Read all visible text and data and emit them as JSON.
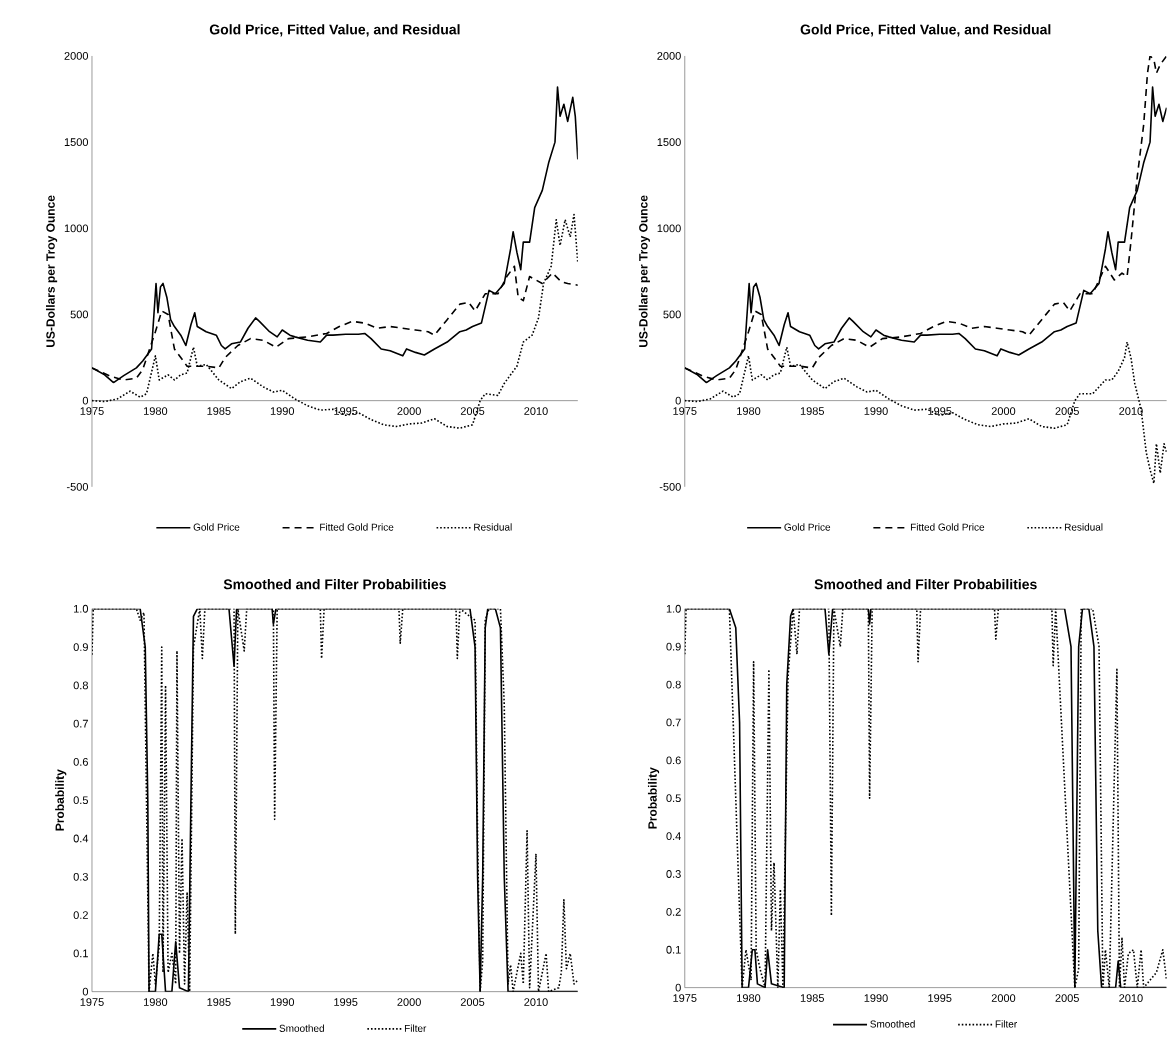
{
  "chart_data": [
    {
      "type": "line",
      "title": "Gold Price, Fitted Value, and Residual",
      "ylabel": "US-Dollars per Troy Ounce",
      "xlim": [
        1975,
        2013.3
      ],
      "xticks": [
        1975,
        1980,
        1985,
        1990,
        1995,
        2000,
        2005,
        2010
      ],
      "ylim": [
        -500,
        2000
      ],
      "yticks": [
        -500,
        0,
        500,
        1000,
        1500,
        2000
      ],
      "legend": "bottom",
      "series": [
        {
          "name": "Gold Price",
          "color": "#000000",
          "line_style": "solid",
          "x": [
            1975,
            1976,
            1976.7,
            1977.5,
            1978.5,
            1979,
            1979.7,
            1980.05,
            1980.2,
            1980.4,
            1980.6,
            1980.9,
            1981.2,
            1981.5,
            1982,
            1982.4,
            1982.8,
            1983.1,
            1983.3,
            1984,
            1984.8,
            1985.2,
            1985.5,
            1986,
            1986.7,
            1987.3,
            1987.9,
            1988.2,
            1989,
            1989.6,
            1990,
            1990.6,
            1991,
            1992,
            1993,
            1993.5,
            1994,
            1995,
            1996,
            1996.5,
            1997,
            1997.8,
            1998.5,
            1999.5,
            1999.8,
            2000.5,
            2001.2,
            2002,
            2002.5,
            2003,
            2004,
            2004.5,
            2005,
            2005.7,
            2006.3,
            2006.8,
            2007.5,
            2008,
            2008.2,
            2008.5,
            2008.8,
            2009,
            2009.5,
            2009.9,
            2010.5,
            2011,
            2011.5,
            2011.7,
            2011.9,
            2012.2,
            2012.5,
            2012.9,
            2013.1,
            2013.3
          ],
          "values": [
            190,
            150,
            105,
            145,
            190,
            230,
            300,
            680,
            510,
            660,
            680,
            600,
            470,
            430,
            380,
            320,
            440,
            510,
            430,
            400,
            380,
            320,
            300,
            330,
            340,
            420,
            480,
            460,
            400,
            370,
            410,
            380,
            370,
            350,
            340,
            380,
            380,
            385,
            385,
            390,
            360,
            300,
            290,
            260,
            300,
            280,
            265,
            300,
            320,
            340,
            400,
            410,
            430,
            450,
            640,
            620,
            680,
            880,
            980,
            860,
            760,
            920,
            920,
            1120,
            1220,
            1380,
            1500,
            1820,
            1650,
            1720,
            1620,
            1760,
            1650,
            1400
          ]
        },
        {
          "name": "Fitted Gold Price",
          "color": "#000000",
          "line_style": "dashed",
          "x": [
            1975,
            1976.5,
            1977.5,
            1978.5,
            1979,
            1980,
            1980.5,
            1981,
            1981.5,
            1982.5,
            1983,
            1984,
            1985,
            1985.5,
            1986.5,
            1987.5,
            1988.5,
            1989.5,
            1990.5,
            1992,
            1993.5,
            1994.5,
            1995.5,
            1996.5,
            1997.5,
            1998.5,
            1999.5,
            2000.5,
            2001.5,
            2002,
            2003,
            2004,
            2004.7,
            2005.2,
            2006,
            2007,
            2007.7,
            2008.3,
            2008.6,
            2009,
            2009.5,
            2010,
            2010.5,
            2011.3,
            2012,
            2012.5,
            2013.3
          ],
          "values": [
            190,
            140,
            120,
            130,
            180,
            400,
            520,
            500,
            300,
            200,
            200,
            200,
            190,
            250,
            320,
            360,
            350,
            310,
            360,
            370,
            390,
            430,
            460,
            450,
            420,
            430,
            420,
            410,
            400,
            380,
            470,
            560,
            570,
            520,
            620,
            620,
            720,
            780,
            600,
            580,
            720,
            700,
            680,
            740,
            690,
            680,
            670
          ]
        },
        {
          "name": "Residual",
          "color": "#000000",
          "line_style": "dotted",
          "x": [
            1975,
            1976,
            1977,
            1978,
            1978.8,
            1979.3,
            1980,
            1980.3,
            1981,
            1981.5,
            1982,
            1982.5,
            1983,
            1983.3,
            1984,
            1985,
            1986,
            1986.7,
            1987.5,
            1988.5,
            1989.3,
            1990,
            1991,
            1992,
            1993,
            1994,
            1995,
            1996,
            1997,
            1998,
            1999,
            2000,
            2001,
            2002,
            2003,
            2004,
            2005,
            2005.6,
            2006,
            2007,
            2007.5,
            2008,
            2008.5,
            2009,
            2009.7,
            2010.2,
            2010.6,
            2011.2,
            2011.6,
            2011.9,
            2012.3,
            2012.7,
            2013,
            2013.3
          ],
          "values": [
            0,
            -5,
            10,
            55,
            20,
            40,
            260,
            120,
            150,
            120,
            150,
            160,
            310,
            200,
            210,
            120,
            70,
            110,
            130,
            80,
            50,
            60,
            10,
            -30,
            -55,
            -50,
            -85,
            -70,
            -110,
            -140,
            -150,
            -135,
            -130,
            -105,
            -150,
            -160,
            -140,
            0,
            40,
            30,
            100,
            150,
            200,
            340,
            380,
            480,
            680,
            780,
            1050,
            900,
            1050,
            950,
            1080,
            800
          ]
        }
      ]
    },
    {
      "type": "line",
      "title": "Gold Price, Fitted Value, and Residual",
      "ylabel": "US-Dollars per Troy Ounce",
      "xlim": [
        1975,
        2012.8
      ],
      "xticks": [
        1975,
        1980,
        1985,
        1990,
        1995,
        2000,
        2005,
        2010
      ],
      "ylim": [
        -500,
        2000
      ],
      "yticks": [
        -500,
        0,
        500,
        1000,
        1500,
        2000
      ],
      "legend": "bottom",
      "series": [
        {
          "name": "Gold Price",
          "color": "#000000",
          "line_style": "solid",
          "x": [
            1975,
            1976,
            1976.7,
            1977.5,
            1978.5,
            1979,
            1979.7,
            1980.05,
            1980.2,
            1980.4,
            1980.6,
            1980.9,
            1981.2,
            1981.5,
            1982,
            1982.4,
            1982.8,
            1983.1,
            1983.3,
            1984,
            1984.8,
            1985.2,
            1985.5,
            1986,
            1986.7,
            1987.3,
            1987.9,
            1988.2,
            1989,
            1989.6,
            1990,
            1990.6,
            1991,
            1992,
            1993,
            1993.5,
            1994,
            1995,
            1996,
            1996.5,
            1997,
            1997.8,
            1998.5,
            1999.5,
            1999.8,
            2000.5,
            2001.2,
            2002,
            2002.5,
            2003,
            2004,
            2004.5,
            2005,
            2005.7,
            2006.3,
            2006.8,
            2007.5,
            2008,
            2008.2,
            2008.5,
            2008.8,
            2009,
            2009.5,
            2009.9,
            2010.5,
            2011,
            2011.5,
            2011.7,
            2011.9,
            2012.2,
            2012.5,
            2012.8
          ],
          "values": [
            190,
            150,
            105,
            145,
            190,
            230,
            300,
            680,
            510,
            660,
            680,
            600,
            470,
            430,
            380,
            320,
            440,
            510,
            430,
            400,
            380,
            320,
            300,
            330,
            340,
            420,
            480,
            460,
            400,
            370,
            410,
            380,
            370,
            350,
            340,
            380,
            380,
            385,
            385,
            390,
            360,
            300,
            290,
            260,
            300,
            280,
            265,
            300,
            320,
            340,
            400,
            410,
            430,
            450,
            640,
            620,
            680,
            880,
            980,
            860,
            760,
            920,
            920,
            1120,
            1220,
            1380,
            1500,
            1820,
            1650,
            1720,
            1620,
            1700
          ]
        },
        {
          "name": "Fitted Gold Price",
          "color": "#000000",
          "line_style": "dashed",
          "x": [
            1975,
            1976.5,
            1977.5,
            1978.5,
            1979,
            1980,
            1980.5,
            1981,
            1981.5,
            1982.5,
            1983,
            1984,
            1985,
            1985.5,
            1986.5,
            1987.5,
            1988.5,
            1989.5,
            1990.5,
            1992,
            1993.5,
            1994.5,
            1995.5,
            1996.5,
            1997.5,
            1998.5,
            1999.5,
            2000.5,
            2001.5,
            2002,
            2003,
            2004,
            2004.7,
            2005.2,
            2006,
            2007,
            2008,
            2008.7,
            2009.3,
            2009.7,
            2010,
            2010.5,
            2011,
            2011.3,
            2011.5,
            2011.8,
            2012,
            2012.3,
            2012.8
          ],
          "values": [
            190,
            140,
            120,
            130,
            180,
            400,
            520,
            500,
            300,
            200,
            200,
            200,
            190,
            250,
            320,
            360,
            350,
            310,
            360,
            370,
            390,
            430,
            460,
            450,
            420,
            430,
            420,
            410,
            400,
            380,
            470,
            560,
            570,
            520,
            620,
            620,
            780,
            700,
            740,
            720,
            920,
            1300,
            1600,
            1900,
            2000,
            1980,
            1900,
            1950,
            2000
          ]
        },
        {
          "name": "Residual",
          "color": "#000000",
          "line_style": "dotted",
          "x": [
            1975,
            1976,
            1977,
            1978,
            1978.8,
            1979.3,
            1980,
            1980.3,
            1981,
            1981.5,
            1982,
            1982.5,
            1983,
            1983.3,
            1984,
            1985,
            1986,
            1986.7,
            1987.5,
            1988.5,
            1989.3,
            1990,
            1991,
            1992,
            1993,
            1994,
            1995,
            1996,
            1997,
            1998,
            1999,
            2000,
            2001,
            2002,
            2003,
            2004,
            2005,
            2005.6,
            2006,
            2007,
            2008,
            2008.5,
            2009,
            2009.5,
            2009.7,
            2010,
            2010.3,
            2010.8,
            2011.2,
            2011.5,
            2011.8,
            2012,
            2012.3,
            2012.6,
            2012.8
          ],
          "values": [
            0,
            -5,
            10,
            55,
            20,
            40,
            260,
            120,
            150,
            120,
            150,
            160,
            310,
            200,
            210,
            120,
            70,
            110,
            130,
            80,
            50,
            60,
            10,
            -30,
            -55,
            -50,
            -85,
            -70,
            -110,
            -140,
            -150,
            -135,
            -130,
            -105,
            -150,
            -160,
            -140,
            0,
            40,
            40,
            120,
            120,
            170,
            250,
            340,
            250,
            100,
            -50,
            -300,
            -400,
            -480,
            -250,
            -420,
            -250,
            -300
          ]
        }
      ]
    },
    {
      "type": "line",
      "title": "Smoothed and Filter Probabilities",
      "ylabel": "Probability",
      "xlim": [
        1975,
        2013.3
      ],
      "xticks": [
        1975,
        1980,
        1985,
        1990,
        1995,
        2000,
        2005,
        2010
      ],
      "ylim": [
        0,
        1
      ],
      "yticks": [
        0,
        0.1,
        0.2,
        0.3,
        0.4,
        0.5,
        0.6,
        0.7,
        0.8,
        0.9,
        {
          "value": 1,
          "label": "1.0"
        }
      ],
      "legend": "bottom",
      "series": [
        {
          "name": "Smoothed",
          "color": "#000000",
          "line_style": "solid",
          "x": [
            1975,
            1978.8,
            1979.2,
            1979.4,
            1979.5,
            1980,
            1980.3,
            1980.5,
            1980.8,
            1981.3,
            1981.6,
            1981.9,
            1982.6,
            1982.8,
            1983,
            1983.3,
            1985.8,
            1986.2,
            1986.4,
            1989.2,
            1989.3,
            1989.5,
            2004.8,
            2005.2,
            2005.4,
            2005.6,
            2005.8,
            2006,
            2006.2,
            2006.8,
            2007.2,
            2007.5,
            2007.8,
            2013.3
          ],
          "values": [
            1,
            1,
            0.9,
            0.5,
            0,
            0,
            0.15,
            0.15,
            0,
            0,
            0.13,
            0.01,
            0,
            0.5,
            0.98,
            1,
            1,
            0.85,
            1,
            1,
            0.96,
            1,
            1,
            0.9,
            0.3,
            0,
            0.3,
            0.95,
            1,
            1,
            0.95,
            0.3,
            0,
            0
          ]
        },
        {
          "name": "Filter",
          "color": "#000000",
          "line_style": "dotted",
          "x": [
            1975,
            1975.1,
            1978.5,
            1978.8,
            1979.1,
            1979.5,
            1979.8,
            1980,
            1980.3,
            1980.5,
            1980.6,
            1980.8,
            1981,
            1981.3,
            1981.6,
            1981.7,
            1981.9,
            1982.1,
            1982.3,
            1982.5,
            1982.7,
            1983,
            1983.5,
            1983.7,
            1983.9,
            1986.2,
            1986.3,
            1986.5,
            1987,
            1987.2,
            1989.3,
            1989.4,
            1989.6,
            1993,
            1993.1,
            1993.3,
            1999.2,
            1999.3,
            1999.5,
            2003.7,
            2003.8,
            2004,
            2005.2,
            2005.4,
            2005.6,
            2005.8,
            2006,
            2006.3,
            2007.2,
            2007.5,
            2007.8,
            2008,
            2008.2,
            2008.8,
            2009,
            2009.3,
            2009.5,
            2010,
            2010.2,
            2010.8,
            2011,
            2011.8,
            2012,
            2012.2,
            2012.4,
            2012.7,
            2013,
            2013.3
          ],
          "values": [
            0.88,
            1,
            1,
            0.97,
            0.99,
            0,
            0.1,
            0.02,
            0.12,
            0.9,
            0.05,
            0.8,
            0.05,
            0.1,
            0.02,
            0.89,
            0.1,
            0.4,
            0.02,
            0.26,
            0,
            0.9,
            1,
            0.87,
            1,
            1,
            0.15,
            1,
            0.89,
            1,
            1,
            0.45,
            1,
            1,
            0.87,
            1,
            1,
            0.91,
            1,
            1,
            0.87,
            1,
            0.97,
            0.4,
            0,
            0.08,
            0.97,
            1,
            1,
            0.75,
            0.02,
            0.07,
            0,
            0.1,
            0.02,
            0.42,
            0.01,
            0.36,
            0,
            0.1,
            0,
            0.01,
            0.05,
            0.24,
            0.06,
            0.1,
            0.02,
            0.03
          ]
        }
      ]
    },
    {
      "type": "line",
      "title": "Smoothed and Filter Probabilities",
      "ylabel": "Probability",
      "xlim": [
        1975,
        2012.8
      ],
      "xticks": [
        1975,
        1980,
        1985,
        1990,
        1995,
        2000,
        2005,
        2010
      ],
      "ylim": [
        0,
        1
      ],
      "yticks": [
        0,
        0.1,
        0.2,
        0.3,
        0.4,
        0.5,
        0.6,
        0.7,
        0.8,
        0.9,
        {
          "value": 1,
          "label": "1.0"
        }
      ],
      "legend": "bottom",
      "series": [
        {
          "name": "Smoothed",
          "color": "#000000",
          "line_style": "solid",
          "x": [
            1975,
            1978.5,
            1979,
            1979.3,
            1979.5,
            1980,
            1980.3,
            1980.5,
            1980.7,
            1981.3,
            1981.5,
            1981.8,
            1982.8,
            1983,
            1983.3,
            1983.5,
            1986,
            1986.3,
            1986.6,
            1989.4,
            1989.5,
            1989.6,
            2004.8,
            2005.3,
            2005.6,
            2005.9,
            2006.2,
            2006.7,
            2007.1,
            2007.4,
            2007.7,
            2008.8,
            2009,
            2009.2,
            2012.8
          ],
          "values": [
            1,
            1,
            0.95,
            0.7,
            0,
            0,
            0.1,
            0.1,
            0.01,
            0,
            0.1,
            0.01,
            0,
            0.8,
            0.98,
            1,
            1,
            0.88,
            1,
            1,
            0.96,
            1,
            1,
            0.9,
            0,
            0.9,
            1,
            1,
            0.9,
            0.15,
            0,
            0,
            0.07,
            0,
            0
          ]
        },
        {
          "name": "Filter",
          "color": "#000000",
          "line_style": "dotted",
          "x": [
            1975,
            1975.1,
            1978.5,
            1979.5,
            1979.8,
            1980.2,
            1980.4,
            1980.6,
            1980.9,
            1981.3,
            1981.6,
            1981.8,
            1982,
            1982.3,
            1982.5,
            1982.7,
            1983.1,
            1983.5,
            1983.8,
            1984,
            1986.3,
            1986.5,
            1986.7,
            1987.2,
            1987.4,
            1989.4,
            1989.5,
            1989.7,
            1993.2,
            1993.3,
            1993.5,
            1999.3,
            1999.4,
            1999.6,
            2003.8,
            2003.9,
            2004.1,
            2005.6,
            2005.9,
            2006.1,
            2007,
            2007.5,
            2007.8,
            2008,
            2008.3,
            2008.9,
            2009.1,
            2009.3,
            2009.5,
            2009.8,
            2010.2,
            2010.5,
            2010.8,
            2011,
            2012,
            2012.5,
            2012.8
          ],
          "values": [
            0.88,
            1,
            1,
            0,
            0.1,
            0.02,
            0.86,
            0.1,
            0.05,
            0,
            0.84,
            0.15,
            0.33,
            0,
            0.26,
            0,
            0.82,
            1,
            0.88,
            1,
            1,
            0.19,
            1,
            0.9,
            1,
            1,
            0.5,
            1,
            1,
            0.86,
            1,
            1,
            0.92,
            1,
            1,
            0.85,
            1,
            0,
            0.05,
            1,
            1,
            0.9,
            0,
            0.1,
            0,
            0.84,
            0,
            0.13,
            0,
            0.09,
            0.1,
            0,
            0.1,
            0,
            0.04,
            0.1,
            0.02
          ]
        }
      ]
    }
  ]
}
